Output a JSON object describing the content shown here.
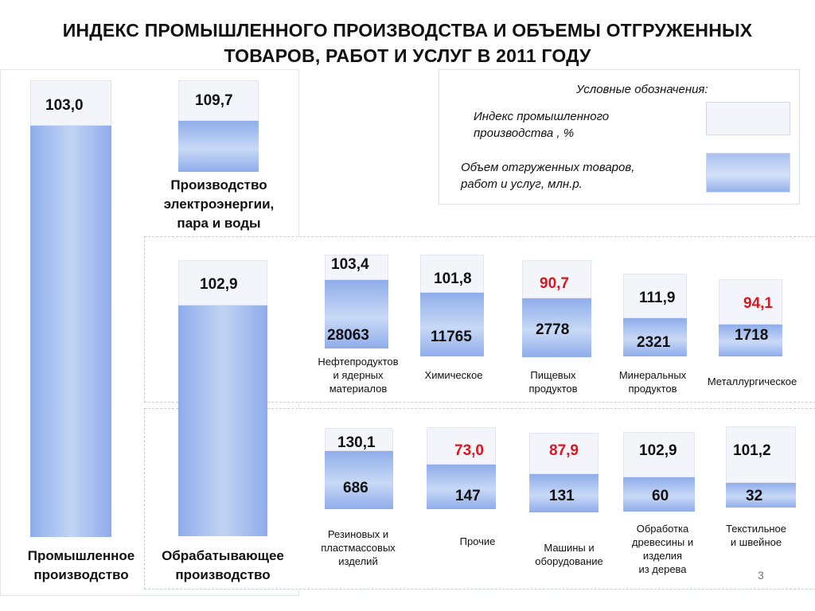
{
  "title_line1": "ИНДЕКС ПРОМЫШЛЕННОГО ПРОИЗВОДСТВА И ОБЪЕМЫ ОТГРУЖЕННЫХ",
  "title_line2": "ТОВАРОВ, РАБОТ И УСЛУГ  В 2011 ГОДУ",
  "legend": {
    "title": "Условные обозначения:",
    "index_line1": "Индекс промышленного",
    "index_line2": "производства , %",
    "volume_line1": "Объем отгруженных товаров,",
    "volume_line2": "работ и услуг, млн.р."
  },
  "colors": {
    "index_cap": "#f4f5fb",
    "volume_fill": "#8eadea",
    "decline": "#e0141e"
  },
  "page_number": "3",
  "chart_data": {
    "type": "bar",
    "series": [
      {
        "name": "Индекс промышленного производства , %",
        "kind": "index"
      },
      {
        "name": "Объем отгруженных товаров, работ и услуг, млн.р.",
        "kind": "volume"
      }
    ],
    "items": [
      {
        "key": "industry",
        "label_lines": [
          "Промышленное",
          "производство"
        ],
        "index": "103,0",
        "volume": null,
        "red": false
      },
      {
        "key": "power",
        "label_lines": [
          "Производство",
          "электроэнергии,",
          "пара и воды"
        ],
        "index": "109,7",
        "volume": null,
        "red": false
      },
      {
        "key": "manufacturing",
        "label_lines": [
          "Обрабатывающее",
          "производство"
        ],
        "index": "102,9",
        "volume": null,
        "red": false
      },
      {
        "key": "oil",
        "label_lines": [
          "Нефтепродуктов",
          "и ядерных",
          "материалов"
        ],
        "index": "103,4",
        "volume": "28063",
        "red": false
      },
      {
        "key": "chemical",
        "label_lines": [
          "Химическое"
        ],
        "index": "101,8",
        "volume": "11765",
        "red": false
      },
      {
        "key": "food",
        "label_lines": [
          "Пищевых",
          "продуктов"
        ],
        "index": "90,7",
        "volume": "2778",
        "red": true
      },
      {
        "key": "mineral",
        "label_lines": [
          "Минеральных",
          "продуктов"
        ],
        "index": "111,9",
        "volume": "2321",
        "red": false
      },
      {
        "key": "metal",
        "label_lines": [
          "Металлургическое"
        ],
        "index": "94,1",
        "volume": "1718",
        "red": true
      },
      {
        "key": "rubber",
        "label_lines": [
          "Резиновых и",
          "пластмассовых",
          "изделий"
        ],
        "index": "130,1",
        "volume": "686",
        "red": false
      },
      {
        "key": "other",
        "label_lines": [
          "Прочие"
        ],
        "index": "73,0",
        "volume": "147",
        "red": true
      },
      {
        "key": "machinery",
        "label_lines": [
          "Машины и",
          "оборудование"
        ],
        "index": "87,9",
        "volume": "131",
        "red": true
      },
      {
        "key": "wood",
        "label_lines": [
          "Обработка",
          "древесины и",
          "изделия",
          "из дерева"
        ],
        "index": "102,9",
        "volume": "60",
        "red": false
      },
      {
        "key": "textile",
        "label_lines": [
          "Текстильное",
          "и швейное"
        ],
        "index": "101,2",
        "volume": "32",
        "red": false
      }
    ]
  }
}
